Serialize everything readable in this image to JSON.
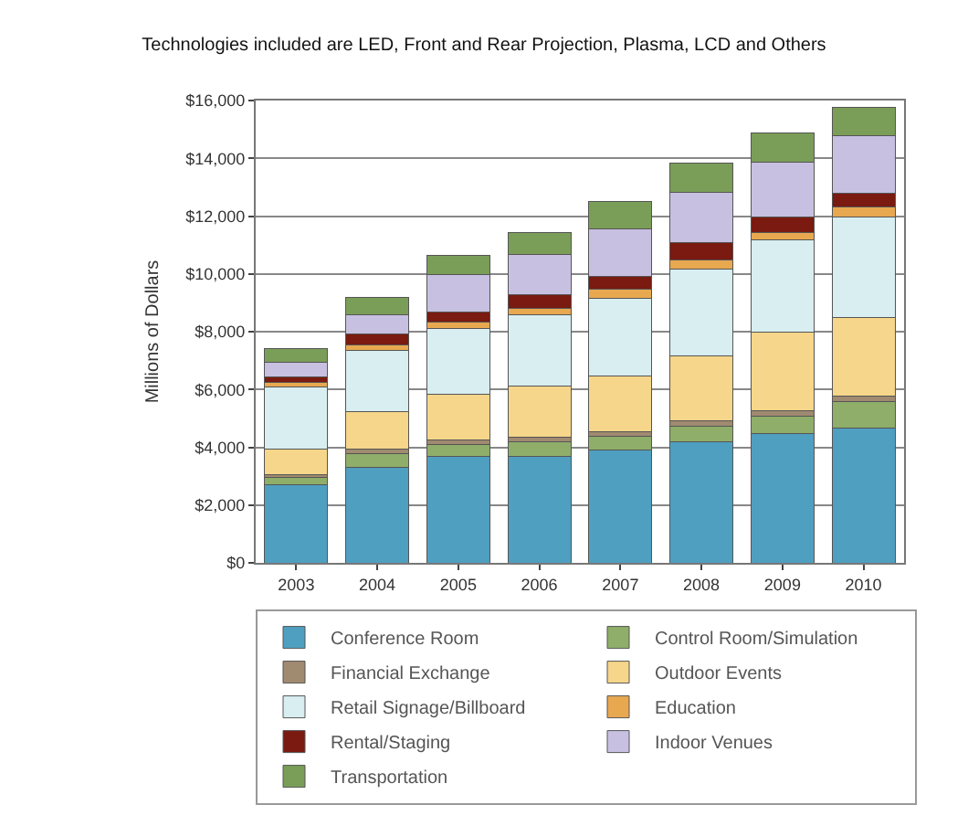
{
  "chart_data": {
    "type": "bar",
    "stacked": true,
    "title": "Technologies included are LED, Front and Rear Projection, Plasma, LCD and Others",
    "ylabel": "Millions of Dollars",
    "categories": [
      "2003",
      "2004",
      "2005",
      "2006",
      "2007",
      "2008",
      "2009",
      "2010"
    ],
    "series": [
      {
        "name": "Conference Room",
        "color": "#4f9fc0",
        "values": [
          2700,
          3320,
          3670,
          3670,
          3900,
          4200,
          4490,
          4670
        ]
      },
      {
        "name": "Control Room/Simulation",
        "color": "#8fae6a",
        "values": [
          250,
          470,
          420,
          510,
          470,
          520,
          580,
          910
        ]
      },
      {
        "name": "Financial Exchange",
        "color": "#a08a70",
        "values": [
          100,
          150,
          160,
          160,
          160,
          190,
          190,
          190
        ]
      },
      {
        "name": "Outdoor Events",
        "color": "#f5d68a",
        "values": [
          900,
          1290,
          1570,
          1780,
          1940,
          2260,
          2730,
          2730
        ]
      },
      {
        "name": "Retail Signage/Billboard",
        "color": "#d8eef0",
        "values": [
          2150,
          2110,
          2290,
          2450,
          2690,
          2990,
          3200,
          3460
        ]
      },
      {
        "name": "Education",
        "color": "#e8a850",
        "values": [
          150,
          190,
          230,
          230,
          300,
          330,
          230,
          350
        ]
      },
      {
        "name": "Rental/Staging",
        "color": "#7a1a10",
        "values": [
          180,
          390,
          350,
          480,
          450,
          580,
          540,
          470
        ]
      },
      {
        "name": "Indoor Venues",
        "color": "#c8c0e0",
        "values": [
          500,
          650,
          1290,
          1400,
          1660,
          1760,
          1920,
          1990
        ]
      },
      {
        "name": "Transportation",
        "color": "#7a9e58",
        "values": [
          500,
          630,
          650,
          750,
          930,
          1000,
          1000,
          1000
        ]
      }
    ],
    "ylim": [
      0,
      16000
    ],
    "yticks": [
      {
        "value": 0,
        "label": "$0"
      },
      {
        "value": 2000,
        "label": "$2,000"
      },
      {
        "value": 4000,
        "label": "$4,000"
      },
      {
        "value": 6000,
        "label": "$6,000"
      },
      {
        "value": 8000,
        "label": "$8,000"
      },
      {
        "value": 10000,
        "label": "$10,000"
      },
      {
        "value": 12000,
        "label": "$12,000"
      },
      {
        "value": 14000,
        "label": "$14,000"
      },
      {
        "value": 16000,
        "label": "$16,000"
      }
    ],
    "grid": "y",
    "legend": "bottom"
  }
}
